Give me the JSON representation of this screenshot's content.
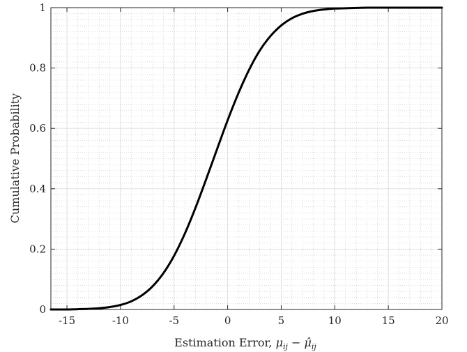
{
  "chart_data": {
    "type": "line",
    "title": "",
    "xlabel": "Estimation Error, ",
    "xlabel_math_base1": "μ",
    "xlabel_math_sub1": "ij",
    "xlabel_math_op": " − ",
    "xlabel_math_base2": "μ̂",
    "xlabel_math_sub2": "ij",
    "ylabel": "Cumulative Probability",
    "xlim": [
      -16.5,
      20
    ],
    "ylim": [
      0,
      1
    ],
    "xticks": [
      -15,
      -10,
      -5,
      0,
      5,
      10,
      15,
      20
    ],
    "xtick_labels": [
      "-15",
      "-10",
      "-5",
      "0",
      "5",
      "10",
      "15",
      "20"
    ],
    "yticks": [
      0,
      0.2,
      0.4,
      0.6,
      0.8,
      1
    ],
    "ytick_labels": [
      "0",
      "0.2",
      "0.4",
      "0.6",
      "0.8",
      "1"
    ],
    "grid": true,
    "minor_grid": true,
    "line_color": "#000000",
    "series": [
      {
        "x": [
          -16.5,
          -15,
          -14,
          -13,
          -12,
          -11,
          -10,
          -9,
          -8,
          -7,
          -6,
          -5,
          -4,
          -3,
          -2,
          -1,
          0,
          1,
          2,
          3,
          4,
          5,
          6,
          7,
          8,
          9,
          10,
          11,
          12,
          13,
          14,
          15,
          16,
          17,
          18,
          19,
          20
        ],
        "y": [
          0.0,
          0.0,
          0.001,
          0.002,
          0.004,
          0.008,
          0.015,
          0.027,
          0.047,
          0.077,
          0.12,
          0.178,
          0.251,
          0.337,
          0.432,
          0.53,
          0.627,
          0.716,
          0.794,
          0.858,
          0.906,
          0.941,
          0.965,
          0.98,
          0.989,
          0.994,
          0.997,
          0.998,
          0.999,
          1.0,
          1.0,
          1.0,
          1.0,
          1.0,
          1.0,
          1.0,
          1.0
        ]
      }
    ]
  }
}
